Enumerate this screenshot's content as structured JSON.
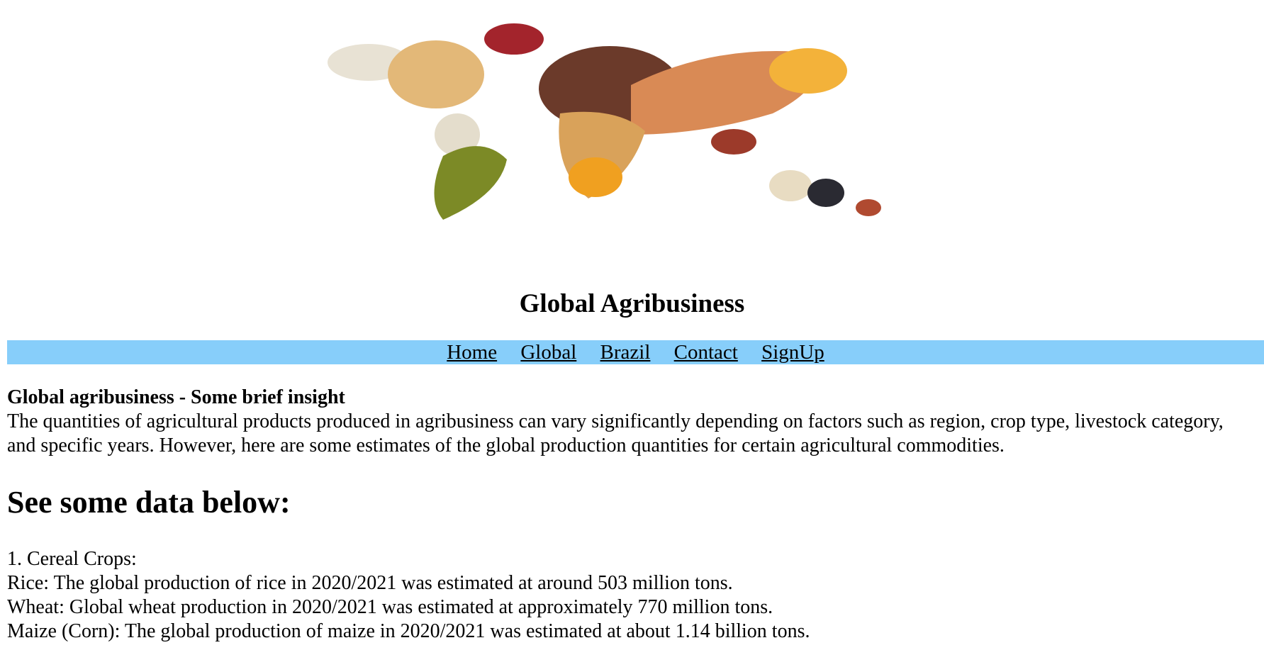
{
  "site": {
    "title": "Global Agribusiness"
  },
  "hero": {
    "icon": "world-map-of-grains-image"
  },
  "nav": {
    "items": [
      "Home",
      "Global",
      "Brazil",
      "Contact",
      "SignUp"
    ],
    "background": "#87cefa"
  },
  "insight": {
    "title": "Global agribusiness - Some brief insight",
    "text": "The quantities of agricultural products produced in agribusiness can vary significantly depending on factors such as region, crop type, livestock category, and specific years. However, here are some estimates of the global production quantities for certain agricultural commodities."
  },
  "data_section": {
    "heading": "See some data below:",
    "lines": [
      "1. Cereal Crops:",
      "Rice: The global production of rice in 2020/2021 was estimated at around 503 million tons.",
      "Wheat: Global wheat production in 2020/2021 was estimated at approximately 770 million tons.",
      "Maize (Corn): The global production of maize in 2020/2021 was estimated at about 1.14 billion tons."
    ]
  }
}
